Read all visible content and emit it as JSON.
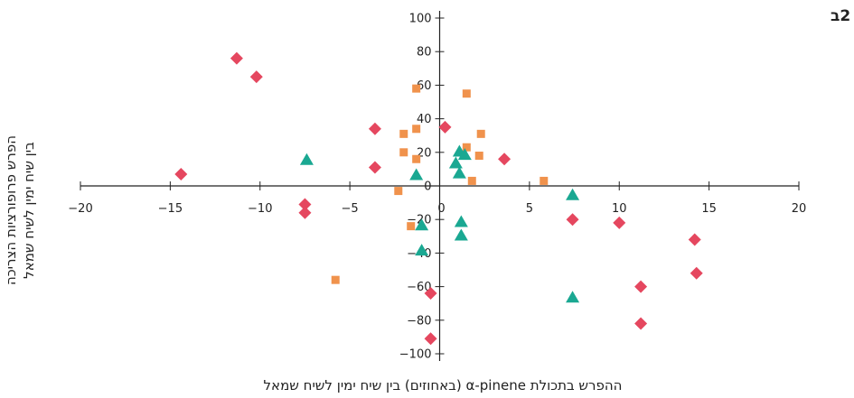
{
  "panel_label": "2ב",
  "chart_data": {
    "type": "scatter",
    "xlabel": "ההפרש בתכולת α-pinene (באחוזים) בין שיח ימין לשיח שמאל",
    "ylabel_lines": [
      "הפרש פרופורציות הצריכה",
      "בין שיח ימין לשיח שמאל"
    ],
    "xlim": [
      -20,
      20
    ],
    "ylim": [
      -100,
      100
    ],
    "xticks": [
      "−20",
      "−15",
      "−10",
      "−5",
      "0",
      "5",
      "10",
      "15",
      "20"
    ],
    "yticks": [
      "100",
      "80",
      "60",
      "40",
      "20",
      "0",
      "−20",
      "−40",
      "−60",
      "−80",
      "−100"
    ],
    "grid": false,
    "series": [
      {
        "marker": "diamond",
        "color": "#e5475f",
        "points": [
          [
            -11.3,
            76
          ],
          [
            -10.2,
            65
          ],
          [
            -14.4,
            7
          ],
          [
            -3.6,
            34
          ],
          [
            -3.6,
            11
          ],
          [
            -7.5,
            -11
          ],
          [
            -7.5,
            -16
          ],
          [
            0.3,
            35
          ],
          [
            3.6,
            16
          ],
          [
            -0.5,
            -64
          ],
          [
            -0.5,
            -91
          ],
          [
            7.4,
            -20
          ],
          [
            10.0,
            -22
          ],
          [
            11.2,
            -60
          ],
          [
            11.2,
            -82
          ],
          [
            14.2,
            -32
          ],
          [
            14.3,
            -52
          ]
        ]
      },
      {
        "marker": "square",
        "color": "#f0924c",
        "points": [
          [
            -1.3,
            58
          ],
          [
            1.5,
            55
          ],
          [
            -2.0,
            31
          ],
          [
            -1.3,
            34
          ],
          [
            2.3,
            31
          ],
          [
            -2.0,
            20
          ],
          [
            -1.3,
            16
          ],
          [
            1.5,
            23
          ],
          [
            2.2,
            18
          ],
          [
            1.8,
            3
          ],
          [
            5.8,
            3
          ],
          [
            -2.3,
            -3
          ],
          [
            -1.6,
            -24
          ],
          [
            -5.8,
            -56
          ]
        ]
      },
      {
        "marker": "triangle",
        "color": "#1aa892",
        "points": [
          [
            -7.4,
            16
          ],
          [
            1.1,
            21
          ],
          [
            1.4,
            19
          ],
          [
            0.9,
            14
          ],
          [
            1.1,
            8
          ],
          [
            -1.3,
            7
          ],
          [
            7.4,
            -5
          ],
          [
            1.2,
            -21
          ],
          [
            1.2,
            -29
          ],
          [
            -1.0,
            -23
          ],
          [
            -1.0,
            -38
          ],
          [
            7.4,
            -66
          ]
        ]
      }
    ]
  }
}
